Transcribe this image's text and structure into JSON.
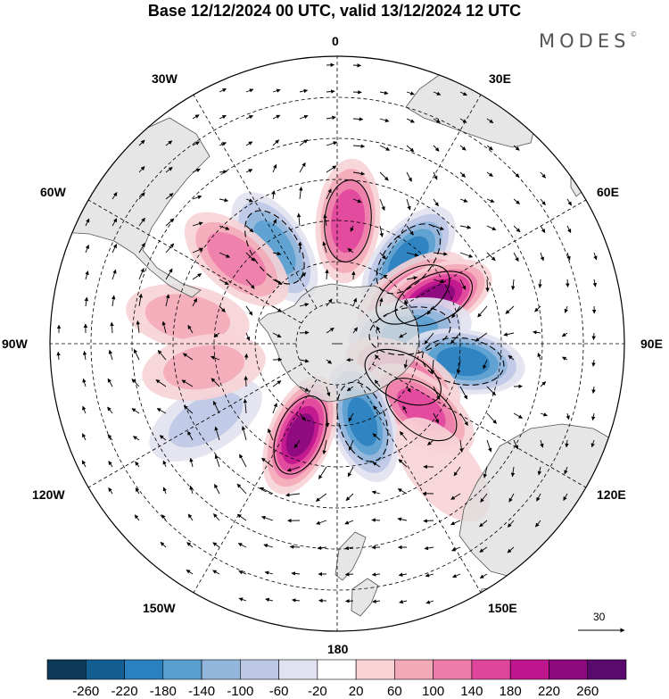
{
  "title": "Base 12/12/2024 00 UTC, valid 13/12/2024 12 UTC",
  "brand": "MODES",
  "brand_mark": "©",
  "longitude_labels": {
    "lon_0": "0",
    "lon_30e": "30E",
    "lon_60e": "60E",
    "lon_90e": "90E",
    "lon_120e": "120E",
    "lon_150e": "150E",
    "lon_180": "180",
    "lon_150w": "150W",
    "lon_120w": "120W",
    "lon_90w": "90W",
    "lon_60w": "60W",
    "lon_30w": "30W"
  },
  "reference_vector": {
    "label": "30"
  },
  "colorbar": {
    "ticks": [
      "-260",
      "-220",
      "-180",
      "-140",
      "-100",
      "-60",
      "-20",
      "20",
      "60",
      "100",
      "140",
      "180",
      "220",
      "260"
    ],
    "colors": [
      "#0e3a5a",
      "#145f92",
      "#2b81bf",
      "#5aa0cf",
      "#92b6dc",
      "#bcc7e4",
      "#e1e2f0",
      "#ffffff",
      "#f7d3d6",
      "#f3aab8",
      "#ee7cab",
      "#e0459c",
      "#c0168d",
      "#8c0a7e",
      "#5a0a6d"
    ]
  },
  "anomaly_centers": [
    {
      "lon": 5,
      "colat": 30,
      "value": 170
    },
    {
      "lon": 40,
      "colat": 27,
      "value": -200
    },
    {
      "lon": 57,
      "colat": 22,
      "value": 150
    },
    {
      "lon": -33,
      "colat": 28,
      "value": -160
    },
    {
      "lon": -50,
      "colat": 32,
      "value": 120
    },
    {
      "lon": 65,
      "colat": 26,
      "value": 230
    },
    {
      "lon": 80,
      "colat": 18,
      "value": -150
    },
    {
      "lon": 98,
      "colat": 31,
      "value": -200
    },
    {
      "lon": 117,
      "colat": 18,
      "value": 130
    },
    {
      "lon": 128,
      "colat": 26,
      "value": 150
    },
    {
      "lon": 162,
      "colat": 20,
      "value": -190
    },
    {
      "lon": -158,
      "colat": 24,
      "value": 230
    },
    {
      "lon": -120,
      "colat": 37,
      "value": -60
    },
    {
      "lon": -80,
      "colat": 37,
      "value": 70
    },
    {
      "lon": -100,
      "colat": 33,
      "value": 60
    },
    {
      "lon": 140,
      "colat": 40,
      "value": 50
    }
  ]
}
